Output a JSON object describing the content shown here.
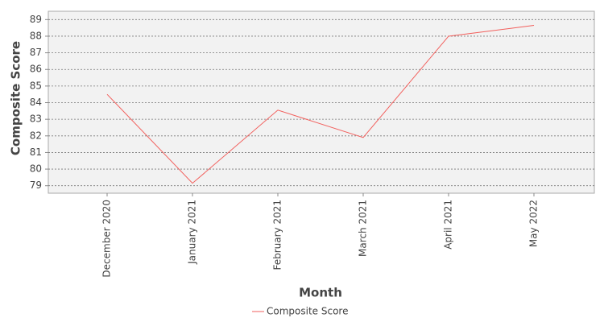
{
  "chart_data": {
    "type": "line",
    "x_label": "Month",
    "y_label": "Composite Score",
    "categories": [
      "December 2020",
      "January 2021",
      "February 2021",
      "March 2021",
      "April 2021",
      "May 2022"
    ],
    "series": [
      {
        "name": "Composite Score",
        "color": "#f25f5c",
        "values": [
          84.5,
          79.15,
          83.55,
          81.9,
          88.0,
          88.65
        ]
      }
    ],
    "ylim": [
      78.55,
      89.5
    ],
    "yticks": [
      79,
      80,
      81,
      82,
      83,
      84,
      85,
      86,
      87,
      88,
      89
    ],
    "grid": true
  }
}
